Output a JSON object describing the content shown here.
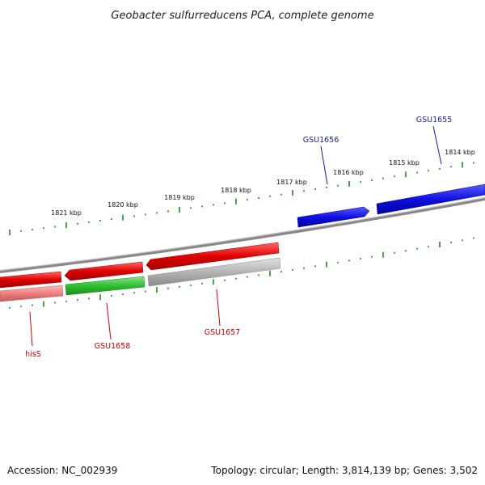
{
  "title": "Geobacter sulfurreducens PCA, complete genome",
  "footer": {
    "accession": "Accession: NC_002939",
    "summary": "Topology: circular; Length: 3,814,139 bp; Genes: 3,502"
  },
  "colors": {
    "forward": "#1010e0",
    "reverse": "#e00000",
    "reverse_light": "#f08080",
    "green": "#30c030",
    "gray": "#b4b4b4",
    "ticks": "#1e8a1e",
    "label_forward": "#1a1aa0",
    "label_reverse": "#cc0000"
  },
  "kbp_labels": [
    "1814 kbp",
    "1815 kbp",
    "1816 kbp",
    "1817 kbp",
    "1818 kbp",
    "1819 kbp",
    "1820 kbp",
    "1821 kbp"
  ],
  "genes": [
    {
      "name": "GSU1655",
      "strand": "forward",
      "color": "forward"
    },
    {
      "name": "GSU1656",
      "strand": "forward",
      "color": "forward"
    },
    {
      "name": "GSU1657",
      "strand": "reverse",
      "color": "reverse"
    },
    {
      "name": "GSU1658",
      "strand": "reverse",
      "color": "reverse"
    },
    {
      "name": "hisS",
      "strand": "reverse",
      "color": "reverse"
    }
  ],
  "extra_features": [
    {
      "color": "reverse_light"
    },
    {
      "color": "green"
    },
    {
      "color": "gray"
    }
  ]
}
